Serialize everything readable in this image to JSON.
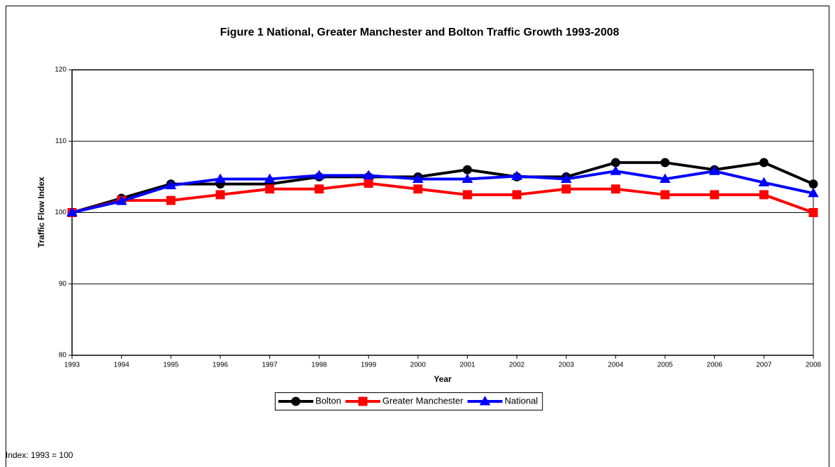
{
  "chart_data": {
    "type": "line",
    "title": "Figure 1 National, Greater Manchester and Bolton Traffic Growth 1993-2008",
    "xlabel": "Year",
    "ylabel": "Traffic Flow Index",
    "note": "Index: 1993 = 100",
    "x": [
      1993,
      1994,
      1995,
      1996,
      1997,
      1998,
      1999,
      2000,
      2001,
      2002,
      2003,
      2004,
      2005,
      2006,
      2007,
      2008
    ],
    "xlim": [
      1993,
      2008
    ],
    "xticks": [
      1993,
      1994,
      1995,
      1996,
      1997,
      1998,
      1999,
      2000,
      2001,
      2002,
      2003,
      2004,
      2005,
      2006,
      2007,
      2008
    ],
    "ylim": [
      80,
      120
    ],
    "yticks": [
      80,
      90,
      100,
      110,
      120
    ],
    "grid": true,
    "legend": "bottom",
    "series": [
      {
        "name": "Bolton",
        "color": "#000000",
        "marker": "circle",
        "values": [
          100,
          102,
          104,
          104,
          104,
          105,
          105,
          105,
          106,
          105,
          105,
          107,
          107,
          106,
          107,
          104
        ]
      },
      {
        "name": "Greater Manchester",
        "color": "#ff0000",
        "marker": "square",
        "values": [
          100,
          101.7,
          101.7,
          102.5,
          103.3,
          103.3,
          104.1,
          103.3,
          102.5,
          102.5,
          103.3,
          103.3,
          102.5,
          102.5,
          102.5,
          100
        ]
      },
      {
        "name": "National",
        "color": "#0000ff",
        "marker": "triangle",
        "values": [
          100,
          101.6,
          103.8,
          104.7,
          104.7,
          105.2,
          105.2,
          104.7,
          104.7,
          105.1,
          104.7,
          105.8,
          104.7,
          105.8,
          104.2,
          102.7
        ]
      }
    ]
  }
}
